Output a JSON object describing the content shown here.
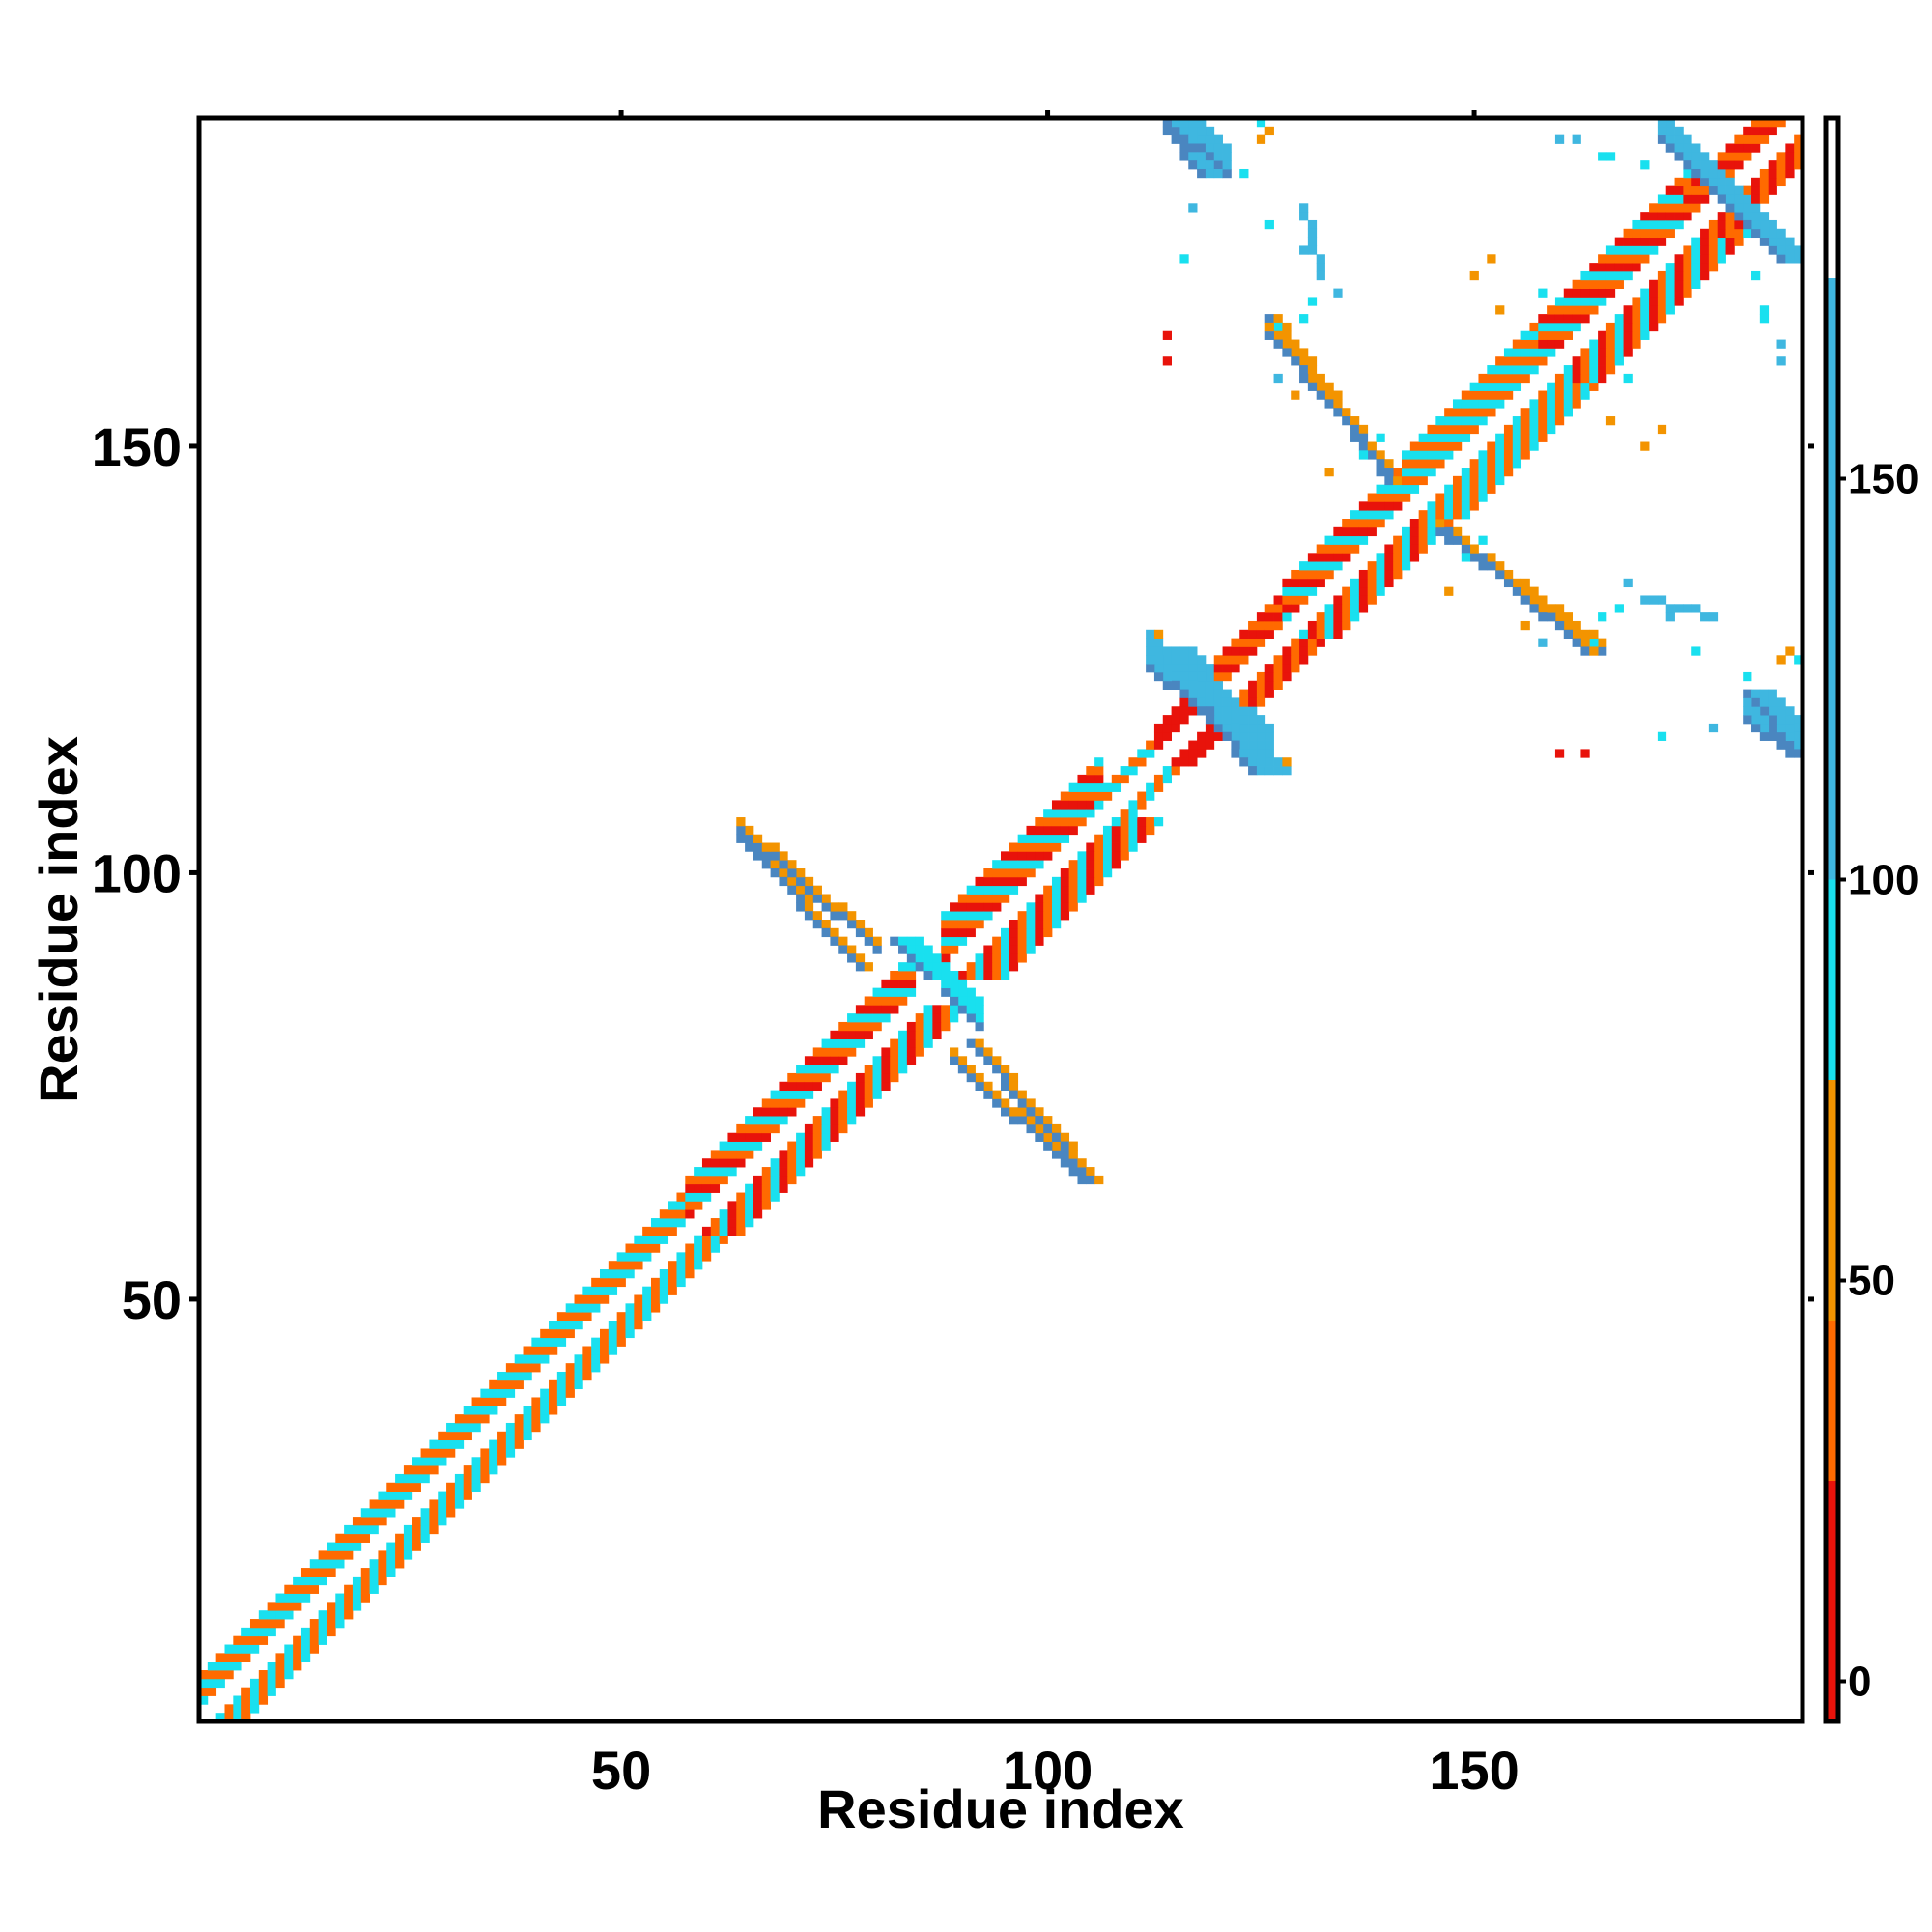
{
  "chart_data": {
    "type": "heatmap",
    "title": "",
    "xlabel": "Residue index",
    "ylabel": "Residue index",
    "xlim": [
      1,
      188
    ],
    "ylim": [
      1,
      188
    ],
    "x_ticks": [
      50,
      100,
      150
    ],
    "y_ticks": [
      50,
      100,
      150
    ],
    "grid": false,
    "legend": "colorbar-right",
    "colorbar": {
      "ticks": [
        0,
        50,
        100,
        150
      ],
      "range": [
        -5,
        195
      ],
      "stops": [
        {
          "from": -5,
          "to": 25,
          "color": "#e8130b"
        },
        {
          "from": 25,
          "to": 45,
          "color": "#ff6a00"
        },
        {
          "from": 45,
          "to": 75,
          "color": "#f39400"
        },
        {
          "from": 75,
          "to": 100,
          "color": "#19e0ef"
        },
        {
          "from": 100,
          "to": 175,
          "color": "#3fb7e0"
        },
        {
          "from": 175,
          "to": 195,
          "color": "#ffffff"
        }
      ]
    },
    "colors": {
      "red": "#e8130b",
      "orange": "#ff6a00",
      "amber": "#f39400",
      "cyan": "#19e0ef",
      "sky": "#3fb7e0",
      "steel": "#4a86c0"
    },
    "diagonal_bands": [
      {
        "start": 1,
        "end": 60,
        "width": 5,
        "pattern": [
          "orange",
          "cyan"
        ]
      },
      {
        "start": 58,
        "end": 84,
        "width": 6,
        "pattern": [
          "red",
          "orange",
          "cyan"
        ]
      },
      {
        "start": 88,
        "end": 106,
        "width": 7,
        "pattern": [
          "red",
          "orange",
          "cyan"
        ]
      },
      {
        "start": 106,
        "end": 113,
        "width": 3,
        "pattern": [
          "cyan",
          "orange"
        ]
      },
      {
        "start": 113,
        "end": 119,
        "width": 4,
        "pattern": [
          "red"
        ]
      },
      {
        "start": 119,
        "end": 128,
        "width": 5,
        "pattern": [
          "red",
          "orange"
        ]
      },
      {
        "start": 128,
        "end": 142,
        "width": 6,
        "pattern": [
          "orange",
          "cyan",
          "red"
        ]
      },
      {
        "start": 142,
        "end": 158,
        "width": 7,
        "pattern": [
          "orange",
          "cyan"
        ]
      },
      {
        "start": 158,
        "end": 175,
        "width": 7,
        "pattern": [
          "red",
          "orange",
          "cyan"
        ]
      },
      {
        "start": 175,
        "end": 188,
        "width": 5,
        "pattern": [
          "orange",
          "red"
        ]
      }
    ],
    "off_diagonal_segments": [
      {
        "from": [
          64,
          104
        ],
        "to": [
          78,
          89
        ],
        "color": "amber",
        "width": 2
      },
      {
        "from": [
          82,
          92
        ],
        "to": [
          86,
          88
        ],
        "color": "cyan",
        "width": 4
      },
      {
        "from": [
          91,
          80
        ],
        "to": [
          105,
          64
        ],
        "color": "amber",
        "width": 2
      },
      {
        "from": [
          113,
          126
        ],
        "to": [
          124,
          112
        ],
        "color": "sky",
        "width": 5
      },
      {
        "from": [
          114,
          187
        ],
        "to": [
          118,
          182
        ],
        "color": "sky",
        "width": 4
      },
      {
        "from": [
          126,
          165
        ],
        "to": [
          140,
          146
        ],
        "color": "amber",
        "width": 2
      },
      {
        "from": [
          147,
          140
        ],
        "to": [
          163,
          126
        ],
        "color": "amber",
        "width": 2
      },
      {
        "from": [
          172,
          186
        ],
        "to": [
          186,
          172
        ],
        "color": "sky",
        "width": 4
      },
      {
        "from": [
          182,
          121
        ],
        "to": [
          188,
          114
        ],
        "color": "sky",
        "width": 4
      },
      {
        "from": [
          130,
          178
        ],
        "to": [
          132,
          170
        ],
        "color": "sky",
        "width": 1
      }
    ],
    "scattered_points": [
      {
        "x": 114,
        "y": 160,
        "color": "red"
      },
      {
        "x": 113,
        "y": 128,
        "color": "amber"
      },
      {
        "x": 126,
        "y": 187,
        "color": "amber"
      },
      {
        "x": 123,
        "y": 182,
        "color": "cyan"
      },
      {
        "x": 117,
        "y": 178,
        "color": "sky"
      },
      {
        "x": 160,
        "y": 186,
        "color": "sky"
      },
      {
        "x": 162,
        "y": 186,
        "color": "cyan"
      },
      {
        "x": 165,
        "y": 184,
        "color": "cyan"
      },
      {
        "x": 152,
        "y": 172,
        "color": "amber"
      },
      {
        "x": 158,
        "y": 168,
        "color": "cyan"
      },
      {
        "x": 170,
        "y": 150,
        "color": "amber"
      },
      {
        "x": 166,
        "y": 153,
        "color": "amber"
      },
      {
        "x": 183,
        "y": 170,
        "color": "cyan"
      },
      {
        "x": 184,
        "y": 166,
        "color": "cyan"
      },
      {
        "x": 186,
        "y": 162,
        "color": "sky"
      },
      {
        "x": 168,
        "y": 134,
        "color": "sky"
      },
      {
        "x": 172,
        "y": 132,
        "color": "sky"
      },
      {
        "x": 173,
        "y": 130,
        "color": "sky"
      },
      {
        "x": 176,
        "y": 126,
        "color": "cyan"
      },
      {
        "x": 172,
        "y": 116,
        "color": "cyan"
      },
      {
        "x": 163,
        "y": 114,
        "color": "red"
      },
      {
        "x": 186,
        "y": 125,
        "color": "amber"
      },
      {
        "x": 188,
        "y": 125,
        "color": "cyan"
      },
      {
        "x": 165,
        "y": 130,
        "color": "cyan"
      },
      {
        "x": 131,
        "y": 167,
        "color": "cyan"
      },
      {
        "x": 127,
        "y": 164,
        "color": "cyan"
      },
      {
        "x": 127,
        "y": 158,
        "color": "sky"
      },
      {
        "x": 129,
        "y": 156,
        "color": "amber"
      },
      {
        "x": 137,
        "y": 149,
        "color": "cyan"
      },
      {
        "x": 133,
        "y": 147,
        "color": "amber"
      },
      {
        "x": 151,
        "y": 139,
        "color": "cyan"
      }
    ]
  }
}
